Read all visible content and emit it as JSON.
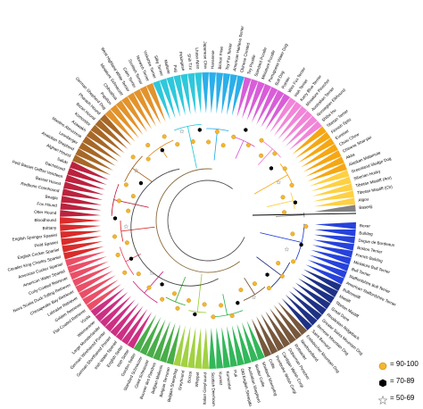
{
  "tree": {
    "labels": [
      "Boxer",
      "Bulldog",
      "Dogue de Bordeaux",
      "Boston Terrier",
      "French Bulldog",
      "Miniature Bull Terrier",
      "Bull Terrier",
      "Staffordshire Bull Terrier",
      "American Staffordshire Terrier",
      "Bullmastiff",
      "Mastiff",
      "Tibetan Mastiff",
      "Great Dane",
      "Rhodesian Ridgeback",
      "Greater Swiss Mountain Dog",
      "Bernese Mountain Dog",
      "Saint Bernard",
      "Entlebucher Mountain Dog",
      "Newfoundland",
      "Rottweiler",
      "Doberman Pinscher",
      "Cardigan Welsh Corgi",
      "Pembroke Welsh Corgi",
      "Collie",
      "Shetland Sheepdog",
      "Border Collie",
      "Australian Shepherd",
      "Old English Sheepdog",
      "Puli",
      "Komondor",
      "Kuvasz",
      "Scottish Deerhound",
      "Italian Greyhound",
      "Whippet",
      "Borzoi",
      "Greyhound",
      "Belgian Sheepdog",
      "Belgian Tervuren",
      "Belgian Malinois",
      "Bouvier des Flandres",
      "Giant Schnauzer",
      "Standard Schnauzer",
      "Gordon Setter",
      "Irish Setter",
      "English Setter",
      "Irish Water Spaniel",
      "German Shorthaired Pointer",
      "German Wirehaired Pointer",
      "Large Munsterlander",
      "Weimaraner",
      "Vizsla",
      "Flat-Coated Retriever",
      "Golden Retriever",
      "Labrador Retriever",
      "Chesapeake Bay Retriever",
      "Nova Scotia Duck Tolling Retriever",
      "Curly-Coated Retriever",
      "American Water Spaniel",
      "American Cocker Spaniel",
      "Cavalier King Charles Spaniel",
      "English Cocker Spaniel",
      "Field Spaniel",
      "English Springer Spaniel",
      "Brittany",
      "Bloodhound",
      "Otter Hound",
      "Fox Hound",
      "Beagle",
      "Redbone Coonhound",
      "Basset Hound",
      "Petit Basset Griffon Vendeen",
      "Dachshund",
      "Saluki",
      "Afghan Hound",
      "Anatolian Shepherd",
      "Leonberger",
      "Mastino Abruzzese",
      "Azawakh",
      "Komondor",
      "Ibizan Hound",
      "Pharaoh Hound",
      "German Shepherd Dog",
      "Papillon",
      "Chihuahua",
      "Miniature Schnauzer",
      "West Highland White Terrier",
      "Cairn Terrier",
      "Scottish Terrier",
      "Norwich Terrier",
      "Yorkshire Terrier",
      "Silky Terrier",
      "Maltese",
      "Pug",
      "Pekingese",
      "Shih Tzu",
      "Lhasa Apso",
      "Japanese Chin",
      "Havanese",
      "Bichon Frise",
      "Toy Fox Terrier",
      "American Hairless Terrier",
      "Chinese Crested",
      "Toy Poodle",
      "Standard Poodle",
      "Miniature Poodle",
      "Portuguese Water Dog",
      "Bull Dog",
      "Pointer",
      "Wire Fox Terrier",
      "Irish Terrier",
      "Kerry Blue Terrier",
      "Miniature Pinscher",
      "Australian Terrier",
      "Norwegian Elkhound",
      "Shiba Inu",
      "Tibetan Terrier",
      "Finnish Spitz",
      "Eurasier",
      "Chow Chow",
      "Chinese Shar-pei",
      "Akita",
      "Alaskan Malamute",
      "Greenland Sledge Dog",
      "Siberian Husky",
      "Tibetan Mastiff (Am)",
      "Tibetan Mastiff (Ch)",
      "Algou",
      "Basenji"
    ]
  },
  "legend": [
    {
      "symbol": "circle-icon",
      "label": "= 90-100",
      "color": "#f2b632"
    },
    {
      "symbol": "hexagon-icon",
      "label": "= 70-89",
      "color": "#000000"
    },
    {
      "symbol": "star-icon",
      "label": "= 50-69",
      "color": "#bdbdbd"
    }
  ]
}
